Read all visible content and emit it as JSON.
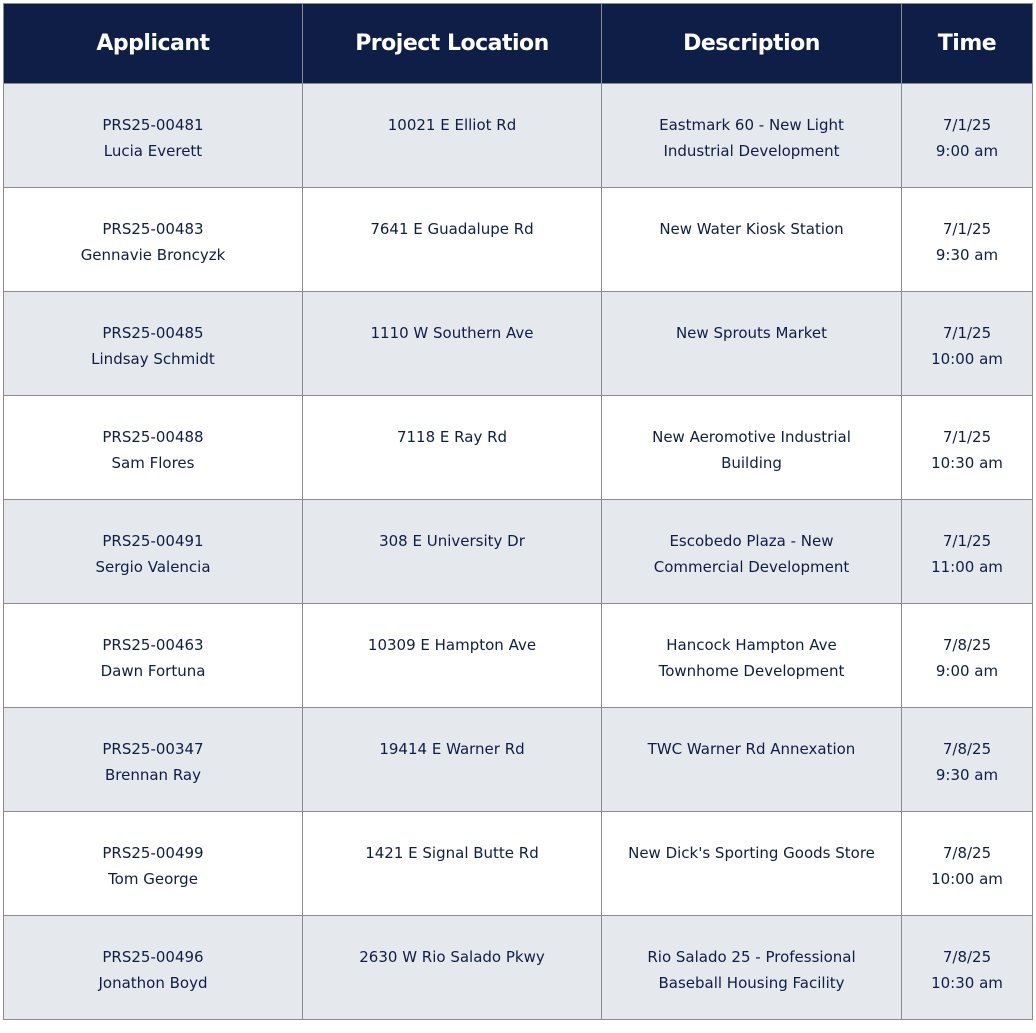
{
  "table": {
    "headers": [
      "Applicant",
      "Project Location",
      "Description",
      "Time"
    ],
    "rows": [
      {
        "id": "PRS25-00481",
        "name": "Lucia Everett",
        "location": "10021 E Elliot Rd",
        "description": [
          "Eastmark 60 - New Light",
          "Industrial Development"
        ],
        "date": "7/1/25",
        "time": "9:00 am"
      },
      {
        "id": "PRS25-00483",
        "name": "Gennavie Broncyzk",
        "location": "7641 E Guadalupe Rd",
        "description": [
          "New Water Kiosk Station",
          ""
        ],
        "date": "7/1/25",
        "time": "9:30 am"
      },
      {
        "id": "PRS25-00485",
        "name": "Lindsay Schmidt",
        "location": "1110 W Southern Ave",
        "description": [
          "New Sprouts Market",
          ""
        ],
        "date": "7/1/25",
        "time": "10:00 am"
      },
      {
        "id": "PRS25-00488",
        "name": "Sam Flores",
        "location": "7118 E Ray Rd",
        "description": [
          "New Aeromotive Industrial",
          "Building"
        ],
        "date": "7/1/25",
        "time": "10:30 am"
      },
      {
        "id": "PRS25-00491",
        "name": "Sergio Valencia",
        "location": "308 E University Dr",
        "description": [
          "Escobedo Plaza - New",
          "Commercial Development"
        ],
        "date": "7/1/25",
        "time": "11:00 am"
      },
      {
        "id": "PRS25-00463",
        "name": "Dawn Fortuna",
        "location": "10309 E Hampton Ave",
        "description": [
          "Hancock Hampton Ave",
          "Townhome Development"
        ],
        "date": "7/8/25",
        "time": "9:00 am"
      },
      {
        "id": "PRS25-00347",
        "name": "Brennan Ray",
        "location": "19414 E Warner Rd",
        "description": [
          "TWC Warner Rd Annexation",
          ""
        ],
        "date": "7/8/25",
        "time": "9:30 am"
      },
      {
        "id": "PRS25-00499",
        "name": "Tom George",
        "location": "1421 E Signal Butte Rd",
        "description": [
          "New Dick's Sporting Goods Store",
          ""
        ],
        "date": "7/8/25",
        "time": "10:00 am"
      },
      {
        "id": "PRS25-00496",
        "name": "Jonathon Boyd",
        "location": "2630 W Rio Salado Pkwy",
        "description": [
          "Rio Salado 25 - Professional",
          "Baseball Housing Facility"
        ],
        "date": "7/8/25",
        "time": "10:30 am"
      }
    ]
  },
  "colors": {
    "header_bg": "#0e1e46",
    "stripe": "#e5e8ed",
    "text": "#0e1e46",
    "border": "#8a8c92"
  }
}
